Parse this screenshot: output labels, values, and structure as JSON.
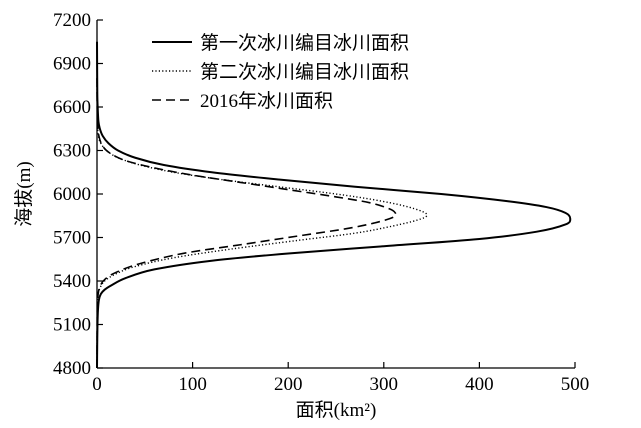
{
  "chart_data": {
    "type": "line",
    "xlabel": "面积(km²)",
    "ylabel": "海拔(m)",
    "xlim": [
      0,
      500
    ],
    "ylim": [
      4800,
      7200
    ],
    "xticks": [
      0,
      100,
      200,
      300,
      400,
      500
    ],
    "yticks": [
      4800,
      5100,
      5400,
      5700,
      6000,
      6300,
      6600,
      6900,
      7200
    ],
    "grid": false,
    "legend_position": "top-right",
    "series": [
      {
        "name": "第一次冰川编目冰川面积",
        "style": "solid",
        "x": [
          0,
          0.2,
          0.5,
          1,
          2,
          4,
          8,
          15,
          30,
          60,
          120,
          200,
          300,
          400,
          460,
          490,
          495,
          490,
          470,
          430,
          360,
          270,
          190,
          120,
          70,
          40,
          22,
          12,
          6,
          3,
          1.5,
          0.7,
          0.3,
          0
        ],
        "y": [
          4800,
          4950,
          5100,
          5200,
          5270,
          5310,
          5340,
          5370,
          5420,
          5480,
          5540,
          5590,
          5640,
          5690,
          5740,
          5790,
          5830,
          5870,
          5910,
          5950,
          6000,
          6050,
          6100,
          6150,
          6200,
          6250,
          6300,
          6350,
          6400,
          6450,
          6500,
          6600,
          6700,
          7050
        ]
      },
      {
        "name": "第二次冰川编目冰川面积",
        "style": "dotted",
        "x": [
          0,
          0.3,
          1,
          3,
          8,
          20,
          40,
          80,
          140,
          210,
          270,
          310,
          335,
          345,
          340,
          320,
          290,
          250,
          190,
          130,
          80,
          45,
          22,
          10,
          4,
          1.5,
          0.5,
          0
        ],
        "y": [
          4800,
          5200,
          5300,
          5350,
          5400,
          5450,
          5500,
          5560,
          5620,
          5680,
          5730,
          5780,
          5820,
          5850,
          5880,
          5920,
          5960,
          6000,
          6050,
          6100,
          6150,
          6200,
          6250,
          6300,
          6350,
          6400,
          6500,
          6800
        ]
      },
      {
        "name": "2016年冰川面积",
        "style": "dashed",
        "x": [
          0,
          0.3,
          1,
          3,
          8,
          20,
          45,
          90,
          150,
          210,
          260,
          290,
          310,
          312,
          305,
          285,
          250,
          200,
          150,
          100,
          60,
          30,
          14,
          6,
          2,
          0.5,
          0
        ],
        "y": [
          4800,
          5200,
          5300,
          5360,
          5410,
          5460,
          5520,
          5590,
          5650,
          5710,
          5760,
          5800,
          5840,
          5870,
          5900,
          5940,
          5980,
          6030,
          6080,
          6130,
          6180,
          6230,
          6280,
          6330,
          6400,
          6500,
          6800
        ]
      }
    ]
  }
}
